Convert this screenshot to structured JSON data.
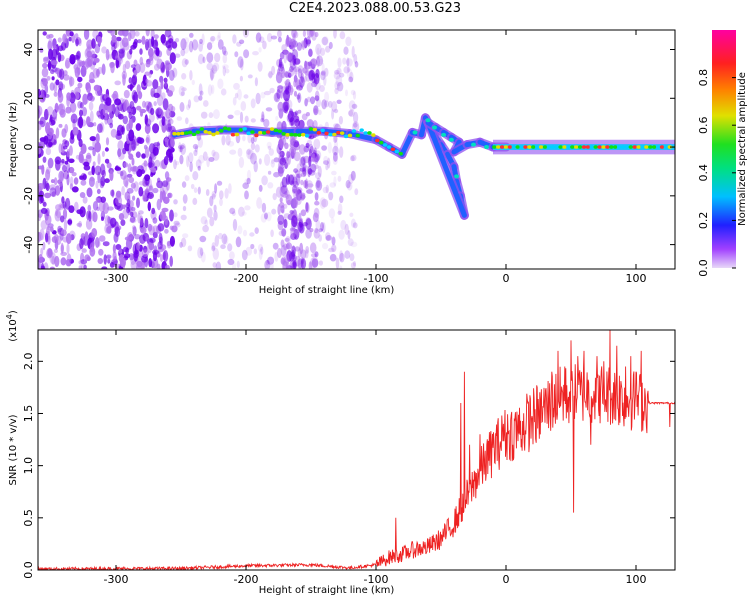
{
  "title": "C2E4.2023.088.00.53.G23",
  "chart_data": [
    {
      "type": "heatmap",
      "xlabel": "Height of straight line (km)",
      "ylabel": "Frequency (Hz)",
      "xlim": [
        -360,
        130
      ],
      "ylim": [
        -50,
        48
      ],
      "x_ticks": [
        -300,
        -200,
        -100,
        0,
        100
      ],
      "y_ticks": [
        -40,
        -20,
        0,
        20,
        40
      ],
      "ridge": [
        [
          -255,
          5
        ],
        [
          -240,
          6.5
        ],
        [
          -220,
          7
        ],
        [
          -200,
          7
        ],
        [
          -180,
          6
        ],
        [
          -160,
          6.5
        ],
        [
          -140,
          6.5
        ],
        [
          -120,
          5.5
        ],
        [
          -100,
          3
        ],
        [
          -90,
          0
        ],
        [
          -80,
          -3
        ],
        [
          -72,
          6
        ],
        [
          -65,
          5
        ],
        [
          -62,
          12
        ],
        [
          -55,
          5
        ],
        [
          -50,
          1
        ],
        [
          -45,
          -3
        ],
        [
          -40,
          -8
        ],
        [
          -38,
          -14
        ],
        [
          -35,
          -20
        ],
        [
          -32,
          -28
        ],
        [
          -60,
          10
        ],
        [
          -54,
          8
        ],
        [
          -48,
          6
        ],
        [
          -42,
          4
        ],
        [
          -36,
          2
        ],
        [
          -40,
          -2
        ],
        [
          -30,
          1
        ],
        [
          -20,
          2
        ],
        [
          -10,
          0
        ],
        [
          0,
          0
        ],
        [
          50,
          0
        ],
        [
          130,
          0
        ]
      ],
      "colorbar": {
        "label": "Normalized spectral amplitude",
        "ticks": [
          0.0,
          0.2,
          0.4,
          0.6,
          0.8
        ],
        "range": [
          0,
          1
        ]
      }
    },
    {
      "type": "line",
      "xlabel": "Height of straight line (km)",
      "ylabel": "SNR (10 * v/v)",
      "multiplier": "(x10",
      "multiplier_exp": "4",
      "xlim": [
        -360,
        130
      ],
      "ylim": [
        0,
        2.3
      ],
      "x_ticks": [
        -300,
        -200,
        -100,
        0,
        100
      ],
      "y_ticks": [
        0.0,
        0.5,
        1.0,
        1.5,
        2.0
      ],
      "color": "#ee2222",
      "trend": [
        [
          -360,
          0.01
        ],
        [
          -250,
          0.015
        ],
        [
          -200,
          0.04
        ],
        [
          -150,
          0.05
        ],
        [
          -120,
          0.02
        ],
        [
          -100,
          0.05
        ],
        [
          -90,
          0.12
        ],
        [
          -80,
          0.15
        ],
        [
          -70,
          0.2
        ],
        [
          -60,
          0.22
        ],
        [
          -50,
          0.3
        ],
        [
          -40,
          0.45
        ],
        [
          -30,
          0.7
        ],
        [
          -20,
          0.95
        ],
        [
          -10,
          1.15
        ],
        [
          0,
          1.3
        ],
        [
          10,
          1.35
        ],
        [
          20,
          1.45
        ],
        [
          30,
          1.55
        ],
        [
          40,
          1.65
        ],
        [
          50,
          1.68
        ],
        [
          60,
          1.7
        ],
        [
          70,
          1.7
        ],
        [
          80,
          1.68
        ],
        [
          90,
          1.65
        ],
        [
          100,
          1.62
        ],
        [
          110,
          1.6
        ],
        [
          130,
          1.6
        ]
      ],
      "spikes": [
        [
          -85,
          0.5
        ],
        [
          -35,
          1.6
        ],
        [
          -32,
          1.9
        ],
        [
          -28,
          1.2
        ],
        [
          -20,
          1.3
        ],
        [
          -15,
          1.2
        ],
        [
          -8,
          1.3
        ],
        [
          -2,
          1.4
        ],
        [
          5,
          1.2
        ],
        [
          15,
          1.3
        ],
        [
          25,
          1.5
        ],
        [
          35,
          1.9
        ],
        [
          40,
          2.1
        ],
        [
          45,
          1.95
        ],
        [
          50,
          2.2
        ],
        [
          52,
          0.55
        ],
        [
          55,
          2.05
        ],
        [
          60,
          2.1
        ],
        [
          65,
          1.2
        ],
        [
          70,
          2.05
        ],
        [
          75,
          2.0
        ],
        [
          80,
          2.3
        ],
        [
          85,
          2.15
        ],
        [
          92,
          1.95
        ],
        [
          96,
          2.05
        ],
        [
          100,
          1.9
        ],
        [
          104,
          2.1
        ],
        [
          126,
          1.37
        ]
      ]
    }
  ]
}
